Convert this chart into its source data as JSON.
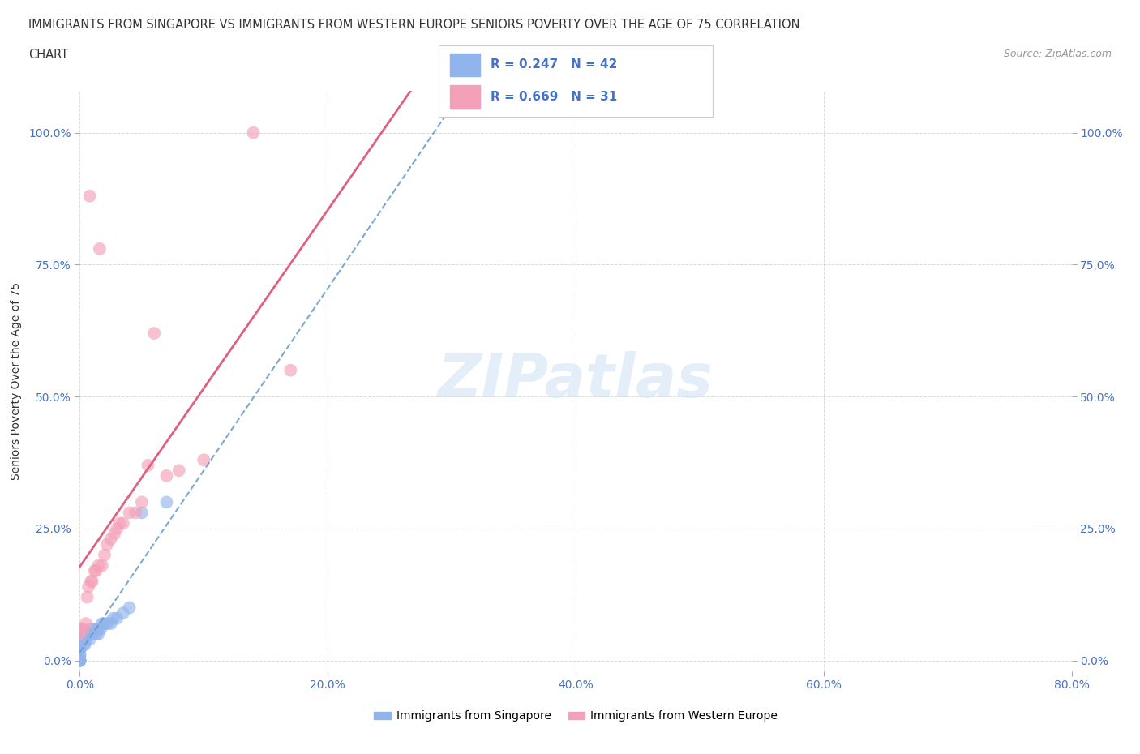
{
  "title_line1": "IMMIGRANTS FROM SINGAPORE VS IMMIGRANTS FROM WESTERN EUROPE SENIORS POVERTY OVER THE AGE OF 75 CORRELATION",
  "title_line2": "CHART",
  "source": "Source: ZipAtlas.com",
  "ylabel": "Seniors Poverty Over the Age of 75",
  "watermark": "ZIPatlas",
  "R_singapore": 0.247,
  "N_singapore": 42,
  "R_western_europe": 0.669,
  "N_western_europe": 31,
  "color_singapore": "#92b4ec",
  "color_western_europe": "#f4a0b8",
  "color_singapore_line": "#6699cc",
  "color_western_europe_line": "#e06080",
  "xlim": [
    0,
    0.8
  ],
  "ylim": [
    -0.02,
    1.08
  ],
  "xticks": [
    0.0,
    0.2,
    0.4,
    0.6,
    0.8
  ],
  "yticks": [
    0.0,
    0.25,
    0.5,
    0.75,
    1.0
  ],
  "xticklabels": [
    "0.0%",
    "20.0%",
    "40.0%",
    "60.0%",
    "80.0%"
  ],
  "yticklabels": [
    "0.0%",
    "25.0%",
    "50.0%",
    "75.0%",
    "100.0%"
  ],
  "background_color": "#ffffff",
  "grid_color": "#cccccc",
  "title_color": "#333333",
  "tick_label_color": "#4472c4",
  "legend_R_color": "#4472c4",
  "sg_x": [
    0.0,
    0.0,
    0.0,
    0.0,
    0.0,
    0.0,
    0.0,
    0.0,
    0.0,
    0.0,
    0.0,
    0.0,
    0.0,
    0.0,
    0.0,
    0.0,
    0.0,
    0.0,
    0.003,
    0.003,
    0.004,
    0.005,
    0.006,
    0.007,
    0.008,
    0.009,
    0.01,
    0.012,
    0.013,
    0.015,
    0.015,
    0.017,
    0.018,
    0.02,
    0.022,
    0.025,
    0.027,
    0.03,
    0.035,
    0.04,
    0.05,
    0.07
  ],
  "sg_y": [
    0.0,
    0.0,
    0.0,
    0.0,
    0.0,
    0.0,
    0.0,
    0.01,
    0.01,
    0.02,
    0.02,
    0.03,
    0.03,
    0.04,
    0.04,
    0.05,
    0.05,
    0.06,
    0.03,
    0.04,
    0.03,
    0.04,
    0.05,
    0.05,
    0.04,
    0.06,
    0.05,
    0.06,
    0.05,
    0.05,
    0.06,
    0.06,
    0.07,
    0.07,
    0.07,
    0.07,
    0.08,
    0.08,
    0.09,
    0.1,
    0.28,
    0.3
  ],
  "we_x": [
    0.0,
    0.0,
    0.003,
    0.005,
    0.006,
    0.007,
    0.008,
    0.009,
    0.01,
    0.012,
    0.013,
    0.015,
    0.016,
    0.018,
    0.02,
    0.022,
    0.025,
    0.028,
    0.03,
    0.032,
    0.035,
    0.04,
    0.045,
    0.05,
    0.055,
    0.06,
    0.07,
    0.08,
    0.1,
    0.14,
    0.17
  ],
  "we_y": [
    0.05,
    0.06,
    0.06,
    0.07,
    0.12,
    0.14,
    0.88,
    0.15,
    0.15,
    0.17,
    0.17,
    0.18,
    0.78,
    0.18,
    0.2,
    0.22,
    0.23,
    0.24,
    0.25,
    0.26,
    0.26,
    0.28,
    0.28,
    0.3,
    0.37,
    0.62,
    0.35,
    0.36,
    0.38,
    1.0,
    0.55
  ]
}
